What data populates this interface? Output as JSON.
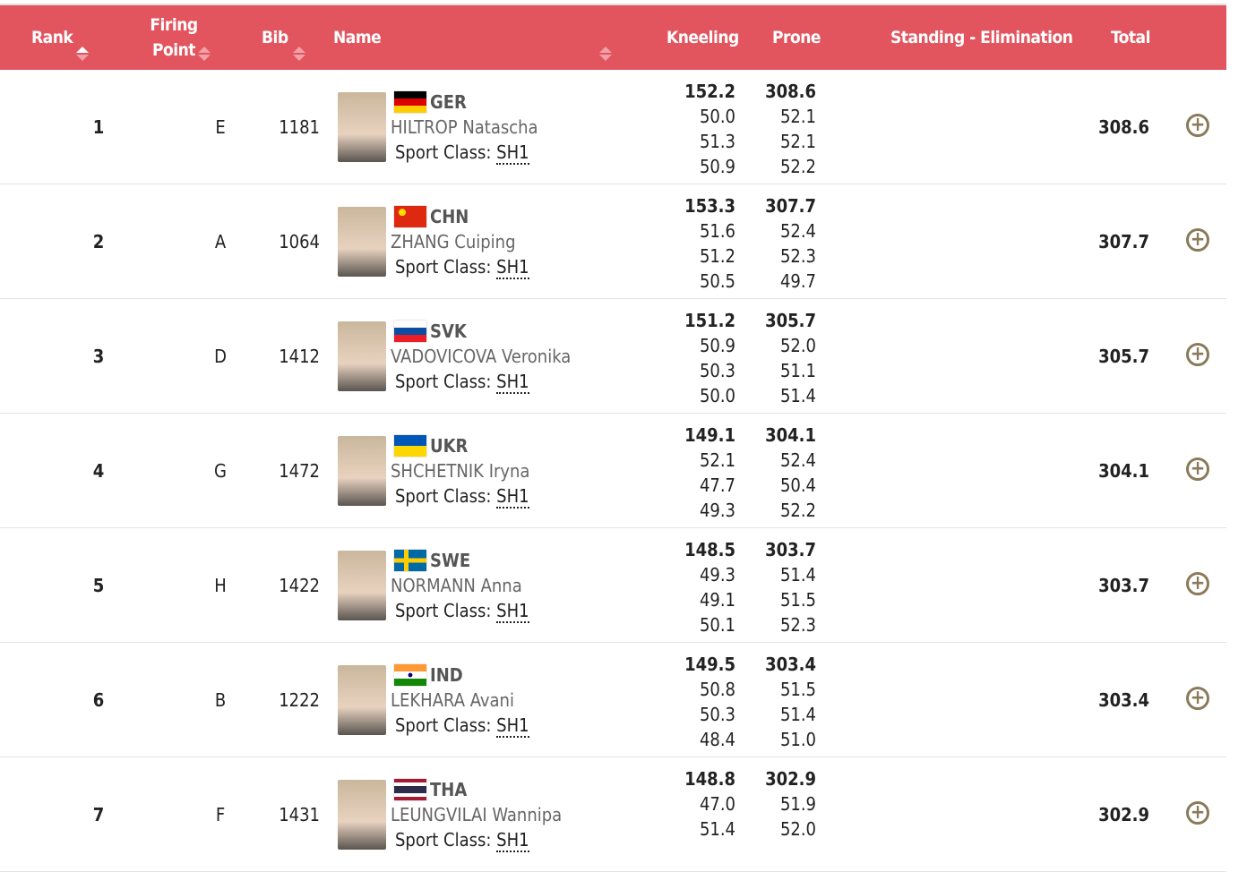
{
  "header": {
    "rank": "Rank",
    "firing_point": "Firing Point",
    "bib": "Bib",
    "name": "Name",
    "kneeling": "Kneeling",
    "prone": "Prone",
    "standing": "Standing - Elimination",
    "total": "Total"
  },
  "rows": [
    {
      "rank": "1",
      "fp": "E",
      "bib": "1181",
      "noc": "GER",
      "name": "HILTROP Natascha",
      "class_label": "Sport Class:",
      "class": "SH1",
      "kneeling": [
        "152.2",
        "50.0",
        "51.3",
        "50.9"
      ],
      "prone": [
        "308.6",
        "52.1",
        "52.1",
        "52.2"
      ],
      "total": "308.6"
    },
    {
      "rank": "2",
      "fp": "A",
      "bib": "1064",
      "noc": "CHN",
      "name": "ZHANG Cuiping",
      "class_label": "Sport Class:",
      "class": "SH1",
      "kneeling": [
        "153.3",
        "51.6",
        "51.2",
        "50.5"
      ],
      "prone": [
        "307.7",
        "52.4",
        "52.3",
        "49.7"
      ],
      "total": "307.7"
    },
    {
      "rank": "3",
      "fp": "D",
      "bib": "1412",
      "noc": "SVK",
      "name": "VADOVICOVA Veronika",
      "class_label": "Sport Class:",
      "class": "SH1",
      "kneeling": [
        "151.2",
        "50.9",
        "50.3",
        "50.0"
      ],
      "prone": [
        "305.7",
        "52.0",
        "51.1",
        "51.4"
      ],
      "total": "305.7"
    },
    {
      "rank": "4",
      "fp": "G",
      "bib": "1472",
      "noc": "UKR",
      "name": "SHCHETNIK Iryna",
      "class_label": "Sport Class:",
      "class": "SH1",
      "kneeling": [
        "149.1",
        "52.1",
        "47.7",
        "49.3"
      ],
      "prone": [
        "304.1",
        "52.4",
        "50.4",
        "52.2"
      ],
      "total": "304.1"
    },
    {
      "rank": "5",
      "fp": "H",
      "bib": "1422",
      "noc": "SWE",
      "name": "NORMANN Anna",
      "class_label": "Sport Class:",
      "class": "SH1",
      "kneeling": [
        "148.5",
        "49.3",
        "49.1",
        "50.1"
      ],
      "prone": [
        "303.7",
        "51.4",
        "51.5",
        "52.3"
      ],
      "total": "303.7"
    },
    {
      "rank": "6",
      "fp": "B",
      "bib": "1222",
      "noc": "IND",
      "name": "LEKHARA Avani",
      "class_label": "Sport Class:",
      "class": "SH1",
      "kneeling": [
        "149.5",
        "50.8",
        "50.3",
        "48.4"
      ],
      "prone": [
        "303.4",
        "51.5",
        "51.4",
        "51.0"
      ],
      "total": "303.4"
    },
    {
      "rank": "7",
      "fp": "F",
      "bib": "1431",
      "noc": "THA",
      "name": "LEUNGVILAI Wannipa",
      "class_label": "Sport Class:",
      "class": "SH1",
      "kneeling": [
        "148.8",
        "47.0",
        "51.4",
        ""
      ],
      "prone": [
        "302.9",
        "51.9",
        "52.0",
        ""
      ],
      "total": "302.9"
    }
  ],
  "colors": {
    "header_bg": "#e2555f",
    "expand_icon": "#8a7a5a"
  }
}
